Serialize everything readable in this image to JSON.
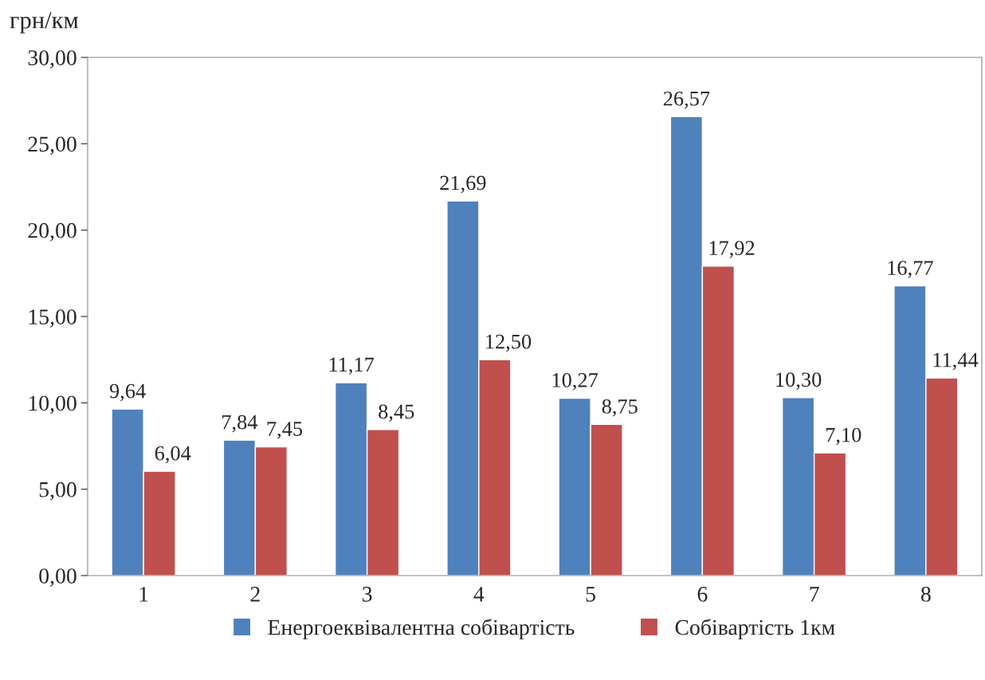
{
  "chart_data": {
    "type": "bar",
    "ylabel": "грн/км",
    "categories": [
      "1",
      "2",
      "3",
      "4",
      "5",
      "6",
      "7",
      "8"
    ],
    "series": [
      {
        "name": "Енергоеквівалентна собівартість",
        "color": "#4f81bd",
        "values": [
          9.64,
          7.84,
          11.17,
          21.69,
          10.27,
          26.57,
          10.3,
          16.77
        ],
        "value_labels": [
          "9,64",
          "7,84",
          "11,17",
          "21,69",
          "10,27",
          "26,57",
          "10,30",
          "16,77"
        ]
      },
      {
        "name": "Собівартість 1км",
        "color": "#c0504d",
        "values": [
          6.04,
          7.45,
          8.45,
          12.5,
          8.75,
          17.92,
          7.1,
          11.44
        ],
        "value_labels": [
          "6,04",
          "7,45",
          "8,45",
          "12,50",
          "8,75",
          "17,92",
          "7,10",
          "11,44"
        ]
      }
    ],
    "ylim": [
      0,
      30
    ],
    "yticks": [
      {
        "value": 0,
        "label": "0,00"
      },
      {
        "value": 5,
        "label": "5,00"
      },
      {
        "value": 10,
        "label": "10,00"
      },
      {
        "value": 15,
        "label": "15,00"
      },
      {
        "value": 20,
        "label": "20,00"
      },
      {
        "value": 25,
        "label": "25,00"
      },
      {
        "value": 30,
        "label": "30,00"
      }
    ],
    "grid": false,
    "legend": "bottom"
  }
}
